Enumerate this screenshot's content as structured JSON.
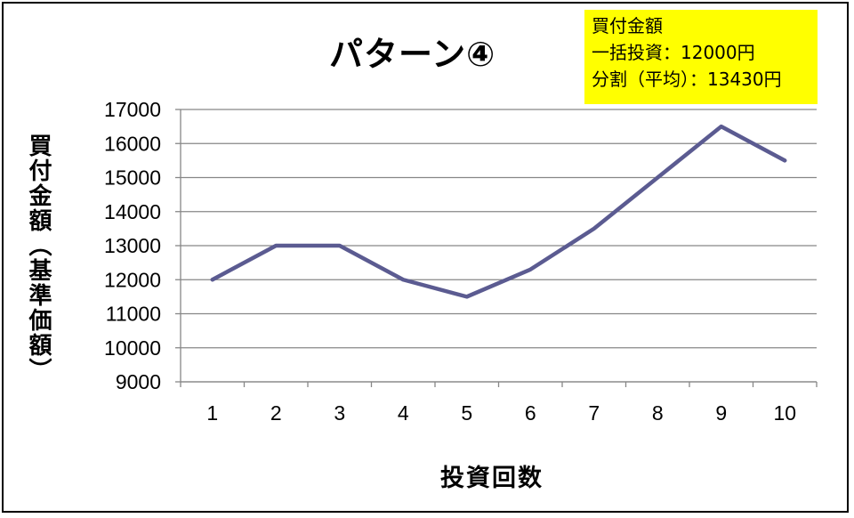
{
  "chart_data": {
    "type": "line",
    "title": "パターン④",
    "xlabel": "投資回数",
    "ylabel": "買付金額（基準価額）",
    "categories": [
      "1",
      "2",
      "3",
      "4",
      "5",
      "6",
      "7",
      "8",
      "9",
      "10"
    ],
    "series": [
      {
        "values": [
          12000,
          13000,
          13000,
          12000,
          11500,
          12300,
          13500,
          15000,
          16500,
          15500
        ]
      }
    ],
    "ylim": [
      9000,
      17000
    ],
    "yticks": [
      9000,
      10000,
      11000,
      12000,
      13000,
      14000,
      15000,
      16000,
      17000
    ],
    "grid": true,
    "annotation": [
      "買付金額",
      "一括投資：12000円",
      "分割（平均）：13430円"
    ],
    "colors": {
      "line": "#5b5b91",
      "grid": "#878787",
      "annotation_bg": "#ffff00"
    }
  }
}
